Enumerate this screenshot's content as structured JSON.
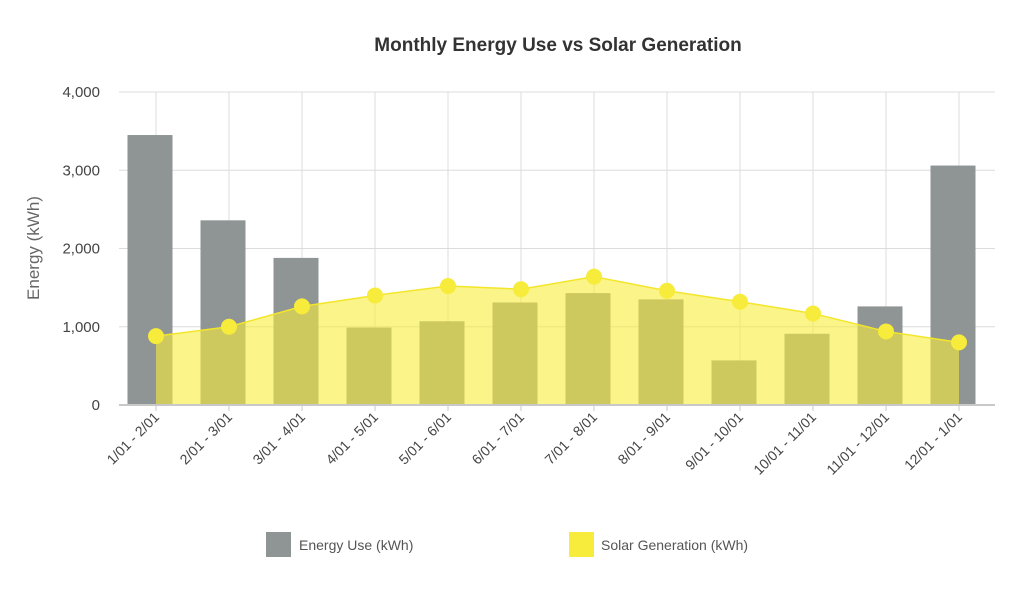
{
  "chart_data": {
    "type": "bar",
    "title": "Monthly Energy Use vs Solar Generation",
    "xlabel": "",
    "ylabel": "Energy (kWh)",
    "ylim": [
      0,
      4000
    ],
    "yticks": [
      0,
      1000,
      2000,
      3000,
      4000
    ],
    "ytick_labels": [
      "0",
      "1,000",
      "2,000",
      "3,000",
      "4,000"
    ],
    "grid": true,
    "legend_position": "bottom",
    "categories": [
      "1/01 - 2/01",
      "2/01 - 3/01",
      "3/01 - 4/01",
      "4/01 - 5/01",
      "5/01 - 6/01",
      "6/01 - 7/01",
      "7/01 - 8/01",
      "8/01 - 9/01",
      "9/01 - 10/01",
      "10/01 - 11/01",
      "11/01 - 12/01",
      "12/01 - 1/01"
    ],
    "series": [
      {
        "name": "Energy Use (kWh)",
        "type": "bar",
        "color": "#8f9495",
        "values": [
          3450,
          2360,
          1880,
          990,
          1070,
          1310,
          1430,
          1350,
          570,
          910,
          1260,
          3060
        ]
      },
      {
        "name": "Solar Generation (kWh)",
        "type": "area",
        "color": "#f7ec3b",
        "fill": "rgba(247,236,59,0.6)",
        "values": [
          880,
          1000,
          1260,
          1400,
          1520,
          1480,
          1640,
          1460,
          1320,
          1170,
          940,
          800
        ]
      }
    ]
  }
}
